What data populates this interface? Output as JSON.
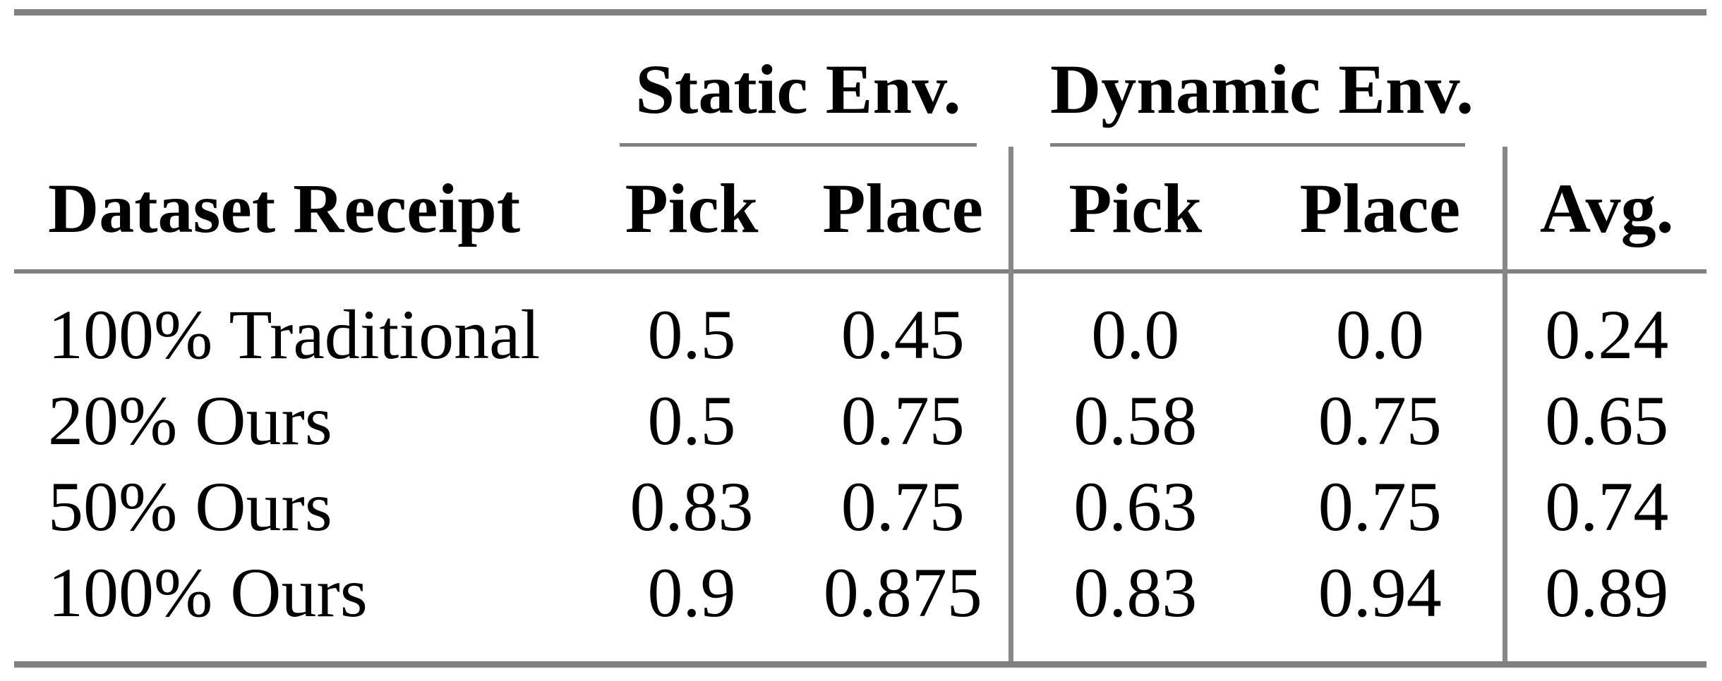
{
  "table": {
    "group_headers": {
      "static": "Static Env.",
      "dynamic": "Dynamic Env."
    },
    "column_headers": {
      "row_label": "Dataset Receipt",
      "static_pick": "Pick",
      "static_place": "Place",
      "dynamic_pick": "Pick",
      "dynamic_place": "Place",
      "avg": "Avg."
    },
    "rows": [
      {
        "label": "100% Traditional",
        "values": [
          "0.5",
          "0.45",
          "0.0",
          "0.0",
          "0.24"
        ]
      },
      {
        "label": "20% Ours",
        "values": [
          "0.5",
          "0.75",
          "0.58",
          "0.75",
          "0.65"
        ]
      },
      {
        "label": "50% Ours",
        "values": [
          "0.83",
          "0.75",
          "0.63",
          "0.75",
          "0.74"
        ]
      },
      {
        "label": "100% Ours",
        "values": [
          "0.9",
          "0.875",
          "0.83",
          "0.94",
          "0.89"
        ]
      }
    ],
    "colors": {
      "rule": "#808080",
      "separator": "#878787",
      "text": "#000000",
      "background": "#ffffff"
    }
  }
}
